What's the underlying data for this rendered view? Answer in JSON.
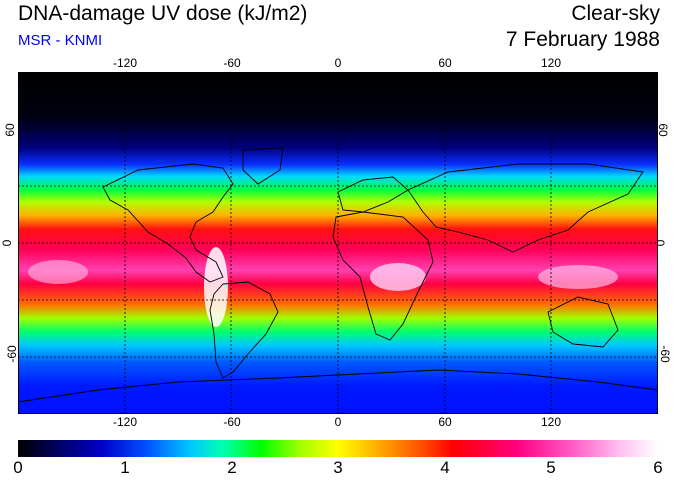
{
  "header": {
    "title": "DNA-damage UV dose (kJ/m2)",
    "credit": "MSR - KNMI",
    "condition": "Clear-sky",
    "date": "7 February 1988"
  },
  "map": {
    "lon_ticks": [
      "-120",
      "-60",
      "0",
      "60",
      "120"
    ],
    "lat_ticks_left": [
      "60",
      "0",
      "-60"
    ],
    "lat_ticks_right": [
      "60",
      "0",
      "-60"
    ],
    "lon_range": [
      -180,
      180
    ],
    "lat_range": [
      -90,
      90
    ],
    "gridlines": true
  },
  "colorbar": {
    "labels": [
      "0",
      "1",
      "2",
      "3",
      "4",
      "5",
      "6"
    ],
    "range": [
      0,
      6
    ]
  },
  "colors": {
    "credit": "#0000ff"
  }
}
